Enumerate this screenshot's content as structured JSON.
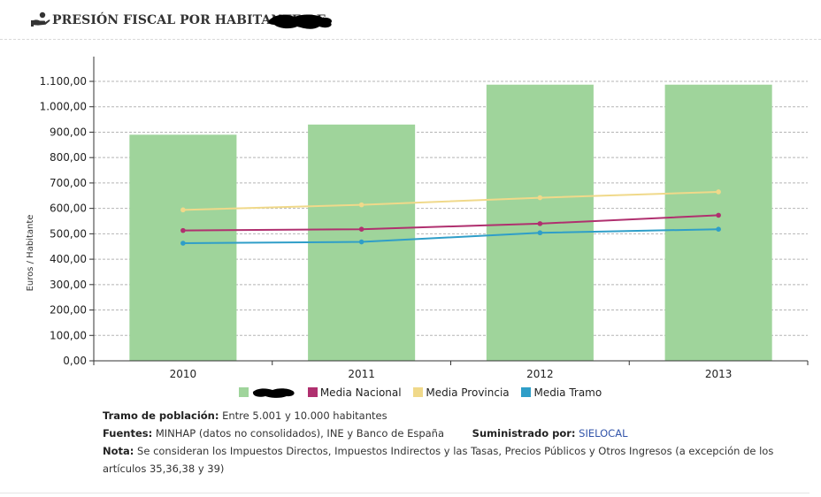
{
  "header": {
    "title": "PRESIÓN FISCAL POR HABITANTE DE"
  },
  "chart_data": {
    "type": "bar",
    "categories": [
      "2010",
      "2011",
      "2012",
      "2013"
    ],
    "ylabel": "Euros / Habitante",
    "ylim": [
      0,
      1100
    ],
    "yticks": [
      "0,00",
      "100,00",
      "200,00",
      "300,00",
      "400,00",
      "500,00",
      "600,00",
      "700,00",
      "800,00",
      "900,00",
      "1.000,00",
      "1.100,00"
    ],
    "grid": true,
    "legend_position": "bottom",
    "series": [
      {
        "kind": "bar",
        "color": "#9fd49b",
        "values": [
          890,
          930,
          1087,
          1087
        ]
      },
      {
        "name": "Media Nacional",
        "kind": "line",
        "color": "#b0306f",
        "values": [
          513,
          518,
          540,
          573
        ]
      },
      {
        "name": "Media Provincia",
        "kind": "line",
        "color": "#f0d98a",
        "values": [
          594,
          614,
          642,
          665
        ]
      },
      {
        "name": "Media Tramo",
        "kind": "line",
        "color": "#2f9ec8",
        "values": [
          463,
          468,
          504,
          518
        ]
      }
    ]
  },
  "notes": {
    "tramo_label": "Tramo de población:",
    "tramo_value": "Entre 5.001 y 10.000 habitantes",
    "fuentes_label": "Fuentes:",
    "fuentes_value": "MINHAP (datos no consolidados), INE y Banco de España",
    "suministrado_label": "Suministrado por:",
    "suministrado_value": "SIELOCAL",
    "nota_label": "Nota:",
    "nota_value": "Se consideran los Impuestos Directos, Impuestos Indirectos y las Tasas, Precios Públicos y Otros Ingresos (a excepción de los artículos 35,36,38 y 39)"
  }
}
